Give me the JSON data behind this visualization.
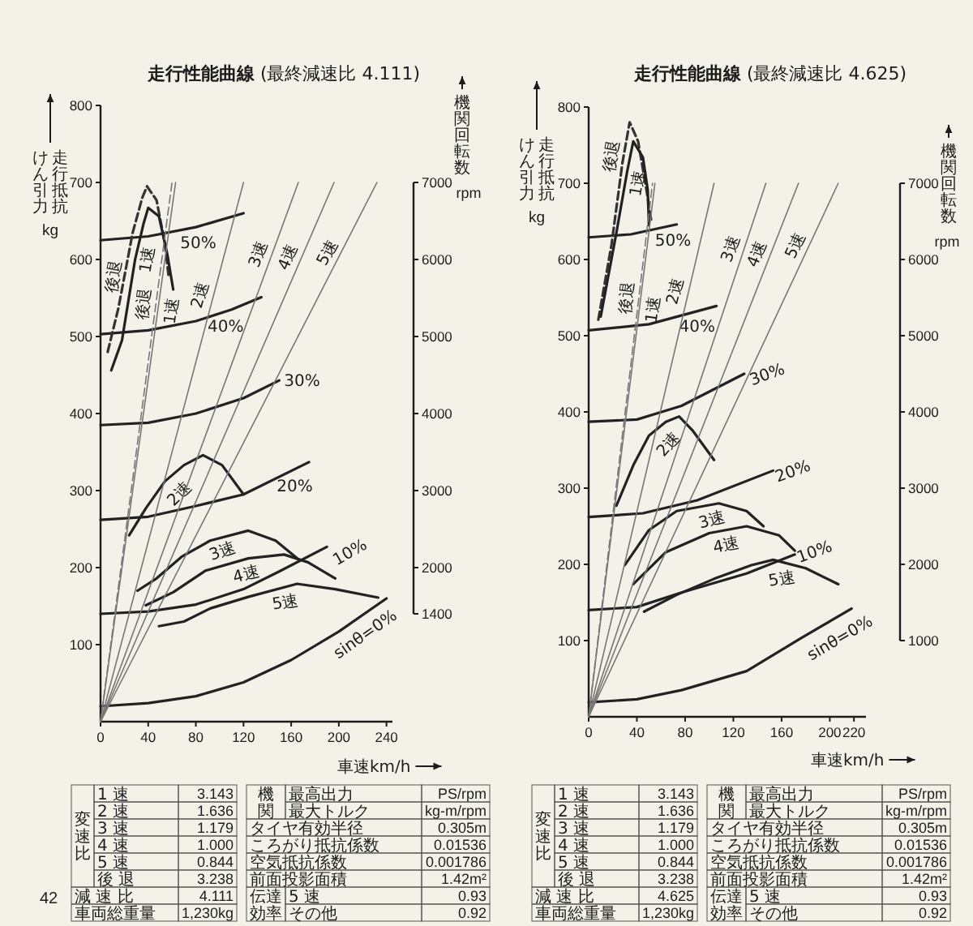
{
  "chart_data": [
    {
      "type": "line",
      "title": "**走行性能曲線** (最終減速比 4.111)",
      "xlabel": "車速km/h",
      "ylabel": "走行抵抗けん引力 kg",
      "y2label": "機関回転数 rpm",
      "xlim": [
        0,
        245
      ],
      "xticks": [
        0,
        40,
        80,
        120,
        160,
        200,
        240
      ],
      "ylim": [
        0,
        800
      ],
      "yticks": [
        100,
        200,
        300,
        400,
        500,
        600,
        700,
        800
      ],
      "y2lim": [
        0,
        8000
      ],
      "y2ticks": [
        1400,
        2000,
        3000,
        4000,
        5000,
        6000,
        7000
      ],
      "series": [
        {
          "name": "50%",
          "color": "#222222",
          "x": [
            0,
            40,
            80,
            120
          ],
          "values": [
            625,
            630,
            642,
            660
          ]
        },
        {
          "name": "40%",
          "color": "#222222",
          "x": [
            0,
            40,
            80,
            110,
            135
          ],
          "values": [
            503,
            508,
            520,
            535,
            551
          ]
        },
        {
          "name": "30%",
          "color": "#222222",
          "x": [
            0,
            40,
            80,
            120,
            150
          ],
          "values": [
            385,
            388,
            400,
            420,
            443
          ]
        },
        {
          "name": "20%",
          "color": "#222222",
          "x": [
            0,
            40,
            80,
            120,
            175
          ],
          "values": [
            262,
            266,
            280,
            295,
            337
          ]
        },
        {
          "name": "10%",
          "color": "#222222",
          "x": [
            0,
            40,
            80,
            120,
            150,
            190
          ],
          "values": [
            140,
            143,
            152,
            172,
            195,
            227
          ]
        },
        {
          "name": "sinθ=0%",
          "color": "#222222",
          "x": [
            0,
            40,
            80,
            120,
            160,
            200,
            240
          ],
          "values": [
            20,
            24,
            33,
            51,
            80,
            117,
            160
          ]
        },
        {
          "name": "後退",
          "color": "#333333",
          "line_style": "dashed",
          "x": [
            6,
            15,
            27,
            35,
            39,
            47,
            54,
            57
          ],
          "values": [
            480,
            537,
            635,
            680,
            695,
            677,
            621,
            580
          ]
        },
        {
          "name": "1速",
          "color": "#222222",
          "x": [
            9,
            18,
            29,
            36,
            40,
            49,
            56,
            61
          ],
          "values": [
            456,
            495,
            600,
            646,
            667,
            656,
            607,
            561
          ]
        },
        {
          "name": "2速",
          "color": "#222222",
          "x": [
            24,
            38,
            54,
            70,
            86,
            102,
            120
          ],
          "values": [
            242,
            277,
            312,
            333,
            346,
            333,
            295
          ]
        },
        {
          "name": "3速",
          "color": "#222222",
          "x": [
            31,
            47,
            68,
            92,
            124,
            147,
            165
          ],
          "values": [
            170,
            186,
            214,
            235,
            248,
            235,
            212
          ]
        },
        {
          "name": "4速",
          "color": "#222222",
          "x": [
            38,
            61,
            88,
            124,
            154,
            174,
            197
          ],
          "values": [
            151,
            168,
            196,
            212,
            217,
            207,
            186
          ]
        },
        {
          "name": "5速",
          "color": "#222222",
          "x": [
            49,
            70,
            92,
            124,
            165,
            197,
            233
          ],
          "values": [
            124,
            130,
            147,
            162,
            179,
            172,
            161
          ]
        },
        {
          "name": "後退",
          "color": "#777777",
          "axis": "y2",
          "line_style": "dashed",
          "x": [
            0,
            60
          ],
          "values": [
            0,
            7000
          ]
        },
        {
          "name": "1速",
          "color": "#777777",
          "axis": "y2",
          "x": [
            0,
            63
          ],
          "values": [
            0,
            7000
          ]
        },
        {
          "name": "2速",
          "color": "#777777",
          "axis": "y2",
          "x": [
            0,
            120
          ],
          "values": [
            0,
            7000
          ]
        },
        {
          "name": "3速",
          "color": "#777777",
          "axis": "y2",
          "x": [
            0,
            166
          ],
          "values": [
            0,
            7000
          ]
        },
        {
          "name": "4速",
          "color": "#777777",
          "axis": "y2",
          "x": [
            0,
            196
          ],
          "values": [
            0,
            7000
          ]
        },
        {
          "name": "5速",
          "color": "#777777",
          "axis": "y2",
          "x": [
            0,
            232
          ],
          "values": [
            0,
            7000
          ]
        }
      ],
      "annotations": [
        "1 速",
        "3.143",
        "2 速",
        "1.636",
        "3 速",
        "1.179",
        "4 速",
        "1.000",
        "5 速",
        "0.844",
        "後 退",
        "3.238",
        "減 速 比",
        "4.111",
        "車両総重量",
        "1,230kg",
        "最高出力",
        "PS/rpm",
        "最大トルク",
        "kg-m/rpm",
        "タイヤ有効半径",
        "0.305m",
        "ころがり抵抗係数",
        "0.01536",
        "空気抵抗係数",
        "0.001786",
        "前面投影面積",
        "1.42m²",
        "5 速",
        "0.93",
        "その他",
        "0.92",
        "変速比",
        "機関",
        "伝達効率",
        "42"
      ]
    },
    {
      "type": "line",
      "title": "**走行性能曲線** (最終減速比 4.625)",
      "xlabel": "車速km/h",
      "ylabel": "走行抵抗けん引力 kg",
      "y2label": "機関回転数 rpm",
      "xlim": [
        0,
        230
      ],
      "xticks": [
        0,
        40,
        80,
        120,
        160,
        200,
        220
      ],
      "ylim": [
        0,
        800
      ],
      "yticks": [
        100,
        200,
        300,
        400,
        500,
        600,
        700,
        800
      ],
      "y2lim": [
        0,
        8000
      ],
      "y2ticks": [
        1000,
        2000,
        3000,
        4000,
        5000,
        6000,
        7000
      ],
      "series": [
        {
          "name": "50%",
          "color": "#222222",
          "x": [
            0,
            35,
            73
          ],
          "values": [
            629,
            633,
            646
          ]
        },
        {
          "name": "40%",
          "color": "#222222",
          "x": [
            0,
            50,
            106
          ],
          "values": [
            507,
            515,
            539
          ]
        },
        {
          "name": "30%",
          "color": "#222222",
          "x": [
            0,
            40,
            77,
            129
          ],
          "values": [
            387,
            390,
            408,
            450
          ]
        },
        {
          "name": "20%",
          "color": "#222222",
          "x": [
            0,
            45,
            90,
            153
          ],
          "values": [
            262,
            267,
            284,
            323
          ]
        },
        {
          "name": "10%",
          "color": "#222222",
          "x": [
            0,
            40,
            77,
            131,
            171
          ],
          "values": [
            140,
            144,
            163,
            188,
            213
          ]
        },
        {
          "name": "sinθ=0%",
          "color": "#222222",
          "x": [
            0,
            40,
            77,
            131,
            176,
            218
          ],
          "values": [
            19,
            23,
            35,
            60,
            103,
            142
          ]
        },
        {
          "name": "後退",
          "color": "#333333",
          "line_style": "dashed",
          "x": [
            8,
            19,
            28,
            34,
            41,
            48,
            52
          ],
          "values": [
            521,
            620,
            727,
            780,
            755,
            691,
            650
          ]
        },
        {
          "name": "1速",
          "color": "#222222",
          "x": [
            10,
            23,
            32,
            37,
            45,
            49,
            50
          ],
          "values": [
            525,
            635,
            716,
            755,
            734,
            691,
            645
          ]
        },
        {
          "name": "2速",
          "color": "#222222",
          "x": [
            23,
            37,
            50,
            64,
            75,
            86,
            104
          ],
          "values": [
            277,
            330,
            369,
            387,
            394,
            376,
            337
          ]
        },
        {
          "name": "3速",
          "color": "#222222",
          "x": [
            30,
            50,
            73,
            108,
            131,
            145
          ],
          "values": [
            199,
            245,
            270,
            280,
            270,
            250
          ]
        },
        {
          "name": "4速",
          "color": "#222222",
          "x": [
            37,
            64,
            100,
            131,
            158,
            171
          ],
          "values": [
            174,
            216,
            241,
            250,
            238,
            218
          ]
        },
        {
          "name": "5速",
          "color": "#222222",
          "x": [
            46,
            73,
            104,
            135,
            153,
            180,
            207
          ],
          "values": [
            138,
            160,
            181,
            199,
            206,
            195,
            174
          ]
        },
        {
          "name": "後退",
          "color": "#777777",
          "axis": "y2",
          "line_style": "dashed",
          "x": [
            0,
            53
          ],
          "values": [
            0,
            7000
          ]
        },
        {
          "name": "1速",
          "color": "#777777",
          "axis": "y2",
          "x": [
            0,
            55
          ],
          "values": [
            0,
            7000
          ]
        },
        {
          "name": "2速",
          "color": "#777777",
          "axis": "y2",
          "x": [
            0,
            104
          ],
          "values": [
            0,
            7000
          ]
        },
        {
          "name": "3速",
          "color": "#777777",
          "axis": "y2",
          "x": [
            0,
            147
          ],
          "values": [
            0,
            7000
          ]
        },
        {
          "name": "4速",
          "color": "#777777",
          "axis": "y2",
          "x": [
            0,
            174
          ],
          "values": [
            0,
            7000
          ]
        },
        {
          "name": "5速",
          "color": "#777777",
          "axis": "y2",
          "x": [
            0,
            207
          ],
          "values": [
            0,
            7000
          ]
        }
      ],
      "annotations": [
        "1 速",
        "3.143",
        "2 速",
        "1.636",
        "3 速",
        "1.179",
        "4 速",
        "1.000",
        "5 速",
        "0.844",
        "後 退",
        "3.238",
        "減 速 比",
        "4.625",
        "車両総重量",
        "1,230kg",
        "最高出力",
        "PS/rpm",
        "最大トルク",
        "kg-m/rpm",
        "タイヤ有効半径",
        "0.305m",
        "ころがり抵抗係数",
        "0.01536",
        "空気抵抗係数",
        "0.001786",
        "前面投影面積",
        "1.42m²",
        "5 速",
        "0.93",
        "その他",
        "0.92",
        "変速比",
        "機関",
        "伝達効率"
      ]
    }
  ]
}
